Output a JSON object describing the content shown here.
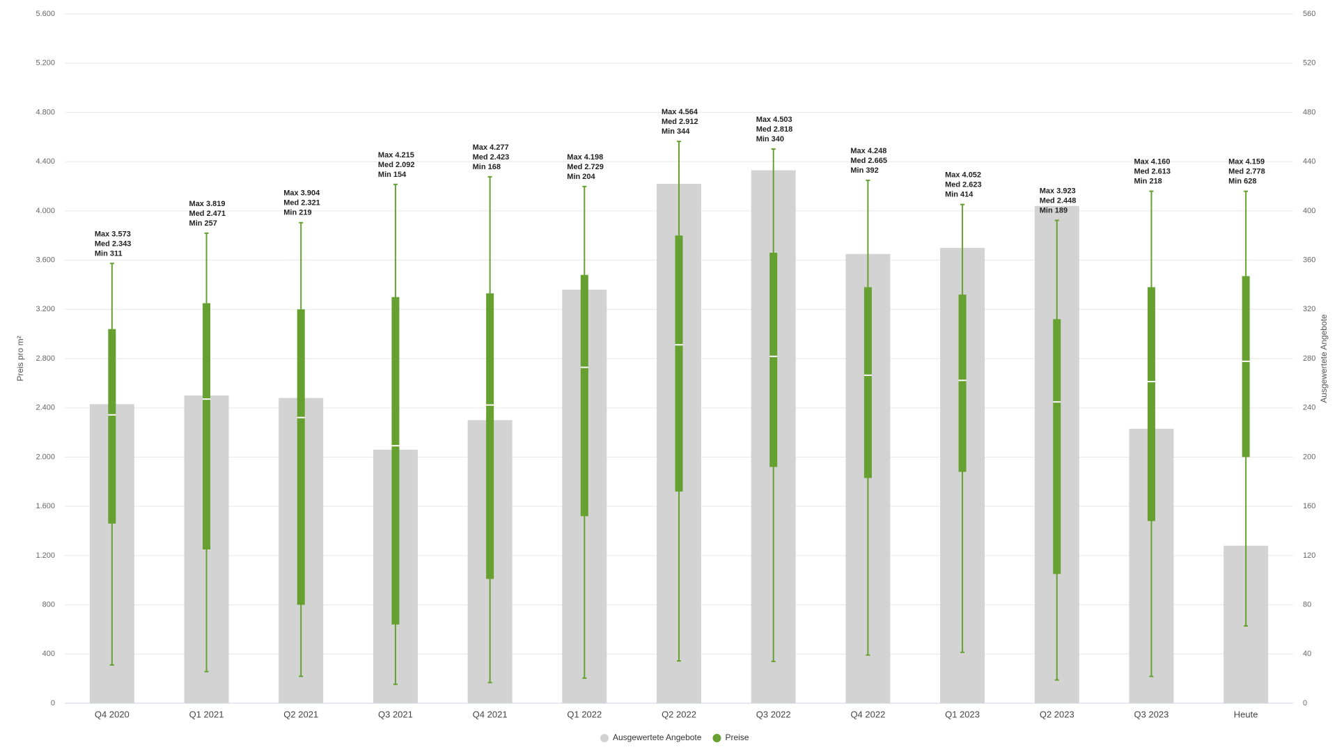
{
  "chart_data": {
    "type": "bar_boxplot",
    "categories": [
      "Q4 2020",
      "Q1 2021",
      "Q2 2021",
      "Q3 2021",
      "Q4 2021",
      "Q1 2022",
      "Q2 2022",
      "Q3 2022",
      "Q4 2022",
      "Q1 2023",
      "Q2 2023",
      "Q3 2023",
      "Heute"
    ],
    "y_label": "Preis pro m²",
    "y2_label": "Ausgewertete Angebote",
    "ylim": [
      0,
      5600
    ],
    "yticks": [
      0,
      400,
      800,
      {
        "value": 1200,
        "label": "1.200"
      },
      {
        "value": 1600,
        "label": "1.600"
      },
      {
        "value": 2000,
        "label": "2.000"
      },
      {
        "value": 2400,
        "label": "2.400"
      },
      {
        "value": 2800,
        "label": "2.800"
      },
      {
        "value": 3200,
        "label": "3.200"
      },
      {
        "value": 3600,
        "label": "3.600"
      },
      {
        "value": 4000,
        "label": "4.000"
      },
      {
        "value": 4400,
        "label": "4.400"
      },
      {
        "value": 4800,
        "label": "4.800"
      },
      {
        "value": 5200,
        "label": "5.200"
      },
      {
        "value": 5600,
        "label": "5.600"
      }
    ],
    "y2lim": [
      0,
      560
    ],
    "y2ticks": [
      0,
      40,
      80,
      120,
      160,
      200,
      240,
      280,
      320,
      360,
      400,
      440,
      480,
      520,
      560
    ],
    "grid": true,
    "legend": "bottom",
    "series": [
      {
        "name": "Ausgewertete Angebote",
        "type": "bar",
        "axis": "y2",
        "color": "#d3d3d3",
        "values": [
          243,
          250,
          248,
          206,
          230,
          336,
          422,
          433,
          365,
          370,
          404,
          223,
          128
        ]
      },
      {
        "name": "Preise",
        "type": "boxplot",
        "color": "#66a030",
        "max": [
          3573,
          3819,
          3904,
          4215,
          4277,
          4198,
          4564,
          4503,
          4248,
          4052,
          3923,
          4160,
          4159
        ],
        "q3": [
          3040,
          3250,
          3200,
          3300,
          3330,
          3480,
          3800,
          3660,
          3380,
          3320,
          3120,
          3380,
          3470
        ],
        "median": [
          2343,
          2471,
          2321,
          2092,
          2423,
          2729,
          2912,
          2818,
          2665,
          2623,
          2448,
          2613,
          2778
        ],
        "q1": [
          1460,
          1250,
          800,
          640,
          1010,
          1520,
          1720,
          1920,
          1830,
          1880,
          1050,
          1480,
          2000
        ],
        "min": [
          311,
          257,
          219,
          154,
          168,
          204,
          344,
          340,
          392,
          414,
          189,
          218,
          628
        ],
        "max_labels": [
          "Max 3.573",
          "Max 3.819",
          "Max 3.904",
          "Max 4.215",
          "Max 4.277",
          "Max 4.198",
          "Max 4.564",
          "Max 4.503",
          "Max 4.248",
          "Max 4.052",
          "Max 3.923",
          "Max 4.160",
          "Max 4.159"
        ],
        "median_labels": [
          "Med 2.343",
          "Med 2.471",
          "Med 2.321",
          "Med 2.092",
          "Med 2.423",
          "Med 2.729",
          "Med 2.912",
          "Med 2.818",
          "Med 2.665",
          "Med 2.623",
          "Med 2.448",
          "Med 2.613",
          "Med 2.778"
        ],
        "min_labels": [
          "Min 311",
          "Min 257",
          "Min 219",
          "Min 154",
          "Min 168",
          "Min 204",
          "Min 344",
          "Min 340",
          "Min 392",
          "Min 414",
          "Min 189",
          "Min 218",
          "Min 628"
        ]
      }
    ]
  }
}
